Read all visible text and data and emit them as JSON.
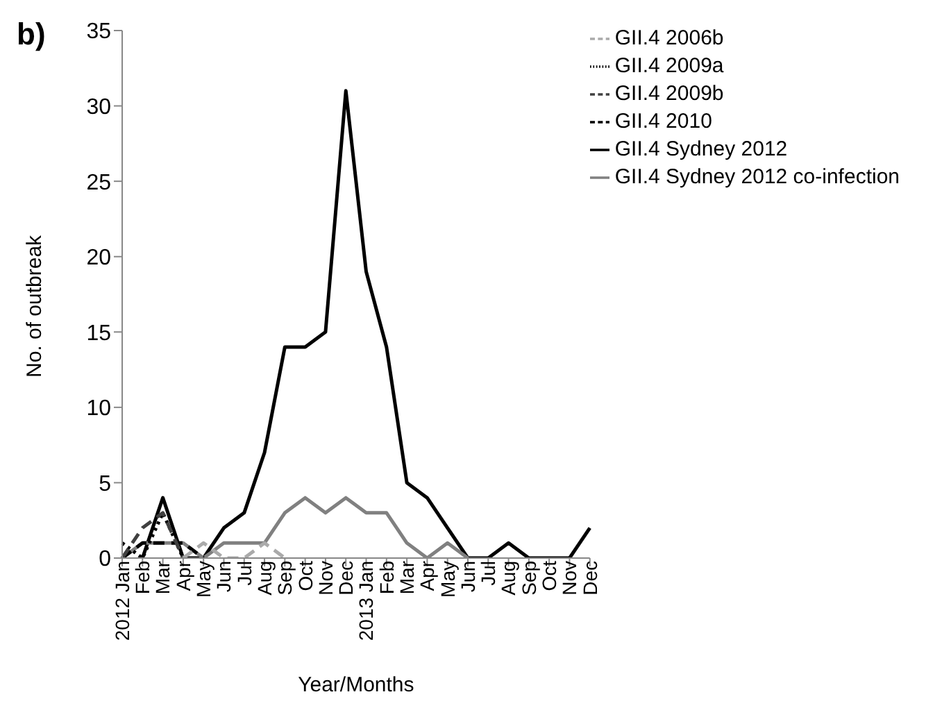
{
  "chart_data": {
    "type": "line",
    "title": "b)",
    "xlabel": "Year/Months",
    "ylabel": "No. of outbreak",
    "categories": [
      "2012 Jan",
      "Feb",
      "Mar",
      "Apr",
      "May",
      "Jun",
      "Jul",
      "Aug",
      "Sep",
      "Oct",
      "Nov",
      "Dec",
      "2013 Jan",
      "Feb",
      "Mar",
      "Apr",
      "May",
      "Jun",
      "Jul",
      "Aug",
      "Sep",
      "Oct",
      "Nov",
      "Dec"
    ],
    "series": [
      {
        "name": "GII.4 Sydney 2012",
        "color": "#000000",
        "line_style": "solid",
        "values": [
          null,
          0,
          4,
          0,
          0,
          2,
          3,
          7,
          14,
          14,
          15,
          31,
          19,
          14,
          5,
          4,
          2,
          0,
          0,
          1,
          0,
          0,
          0,
          2
        ]
      },
      {
        "name": "GII.4 Sydney 2012 co-infection",
        "color": "#808080",
        "line_style": "solid",
        "values": [
          0,
          1,
          1,
          1,
          0,
          1,
          1,
          1,
          3,
          4,
          3,
          4,
          3,
          3,
          1,
          0,
          1,
          0,
          null,
          null,
          null,
          null,
          null,
          null
        ]
      },
      {
        "name": "GII.4 2010",
        "color": "#000000",
        "line_style": "dashed",
        "values": [
          0,
          1,
          1,
          1,
          0,
          null,
          null,
          null,
          null,
          null,
          null,
          null,
          null,
          null,
          null,
          null,
          null,
          null,
          null,
          null,
          null,
          null,
          null,
          null
        ]
      },
      {
        "name": "GII.4 2009a",
        "color": "#000000",
        "line_style": "dotted",
        "values": [
          1,
          0,
          3,
          0,
          null,
          null,
          null,
          null,
          null,
          null,
          null,
          null,
          null,
          null,
          null,
          null,
          null,
          null,
          null,
          null,
          null,
          null,
          null,
          null
        ]
      },
      {
        "name": "GII.4 2009b",
        "color": "#404040",
        "line_style": "dashed",
        "values": [
          0,
          2,
          3,
          0,
          null,
          null,
          null,
          null,
          null,
          null,
          null,
          null,
          null,
          null,
          null,
          null,
          null,
          null,
          null,
          null,
          null,
          null,
          null,
          null
        ]
      },
      {
        "name": "GII.4 2006b",
        "color": "#aaaaaa",
        "line_style": "dashed",
        "values": [
          null,
          null,
          null,
          0,
          1,
          0,
          0,
          1,
          0,
          null,
          null,
          null,
          null,
          null,
          null,
          null,
          null,
          null,
          null,
          null,
          null,
          null,
          null,
          null
        ]
      }
    ],
    "ylim": [
      0,
      35
    ],
    "yticks": [
      0,
      5,
      10,
      15,
      20,
      25,
      30,
      35
    ],
    "grid": false,
    "legend": "top right",
    "marker": "none"
  }
}
